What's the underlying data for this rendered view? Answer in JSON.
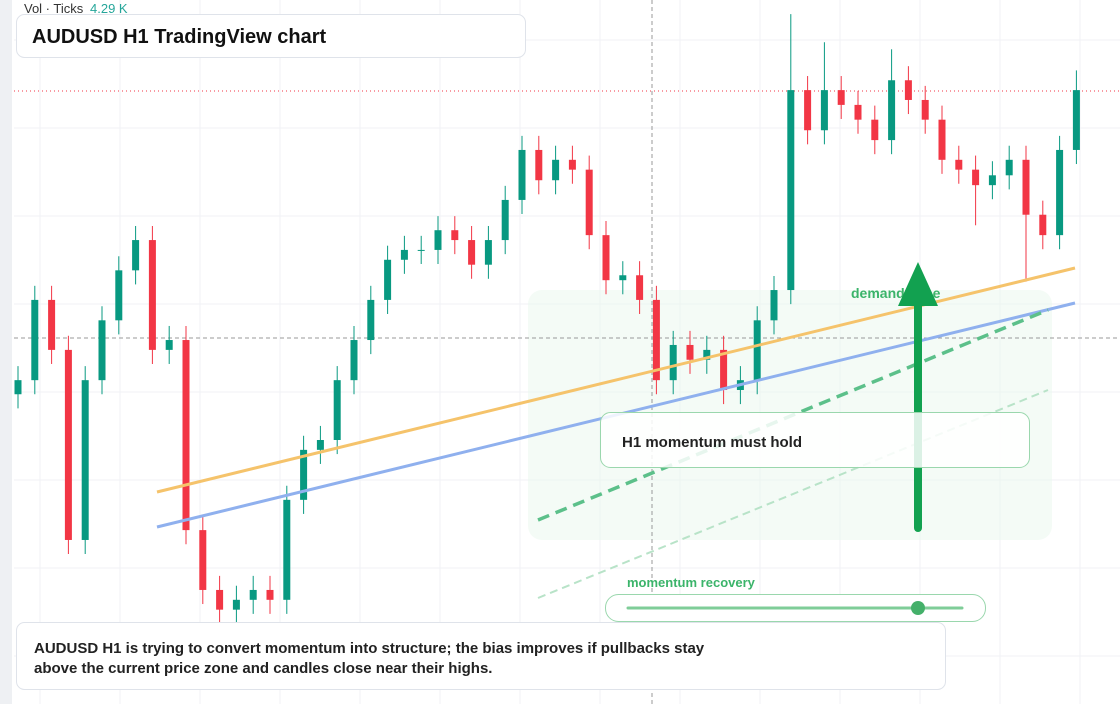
{
  "header": {
    "vol_label": "Vol · Ticks",
    "vol_value": "4.29 K",
    "title": "AUDUSD H1 TradingView chart"
  },
  "chart_data": {
    "type": "candlestick",
    "ylim": [
      0,
      100
    ],
    "up_color": "#089981",
    "down_color": "#f23645",
    "open": [
      44.0,
      46.0,
      57.4,
      50.3,
      23.3,
      46.0,
      54.5,
      61.6,
      65.9,
      50.3,
      51.7,
      24.7,
      16.2,
      13.4,
      14.8,
      16.2,
      14.8,
      29.0,
      36.1,
      37.5,
      46.0,
      51.7,
      57.4,
      63.1,
      64.5,
      64.5,
      67.3,
      65.9,
      62.4,
      65.9,
      71.6,
      78.7,
      74.4,
      77.3,
      75.9,
      66.6,
      60.2,
      60.9,
      57.4,
      46.0,
      51.0,
      48.9,
      50.3,
      44.6,
      46.0,
      54.5,
      58.8,
      87.2,
      81.5,
      87.2,
      85.1,
      83.0,
      80.1,
      88.6,
      85.8,
      83.0,
      77.3,
      75.9,
      73.7,
      75.1,
      77.3,
      69.5,
      66.6,
      78.7
    ],
    "high": [
      48.0,
      59.4,
      59.4,
      52.3,
      48.0,
      56.5,
      63.6,
      67.9,
      67.9,
      53.7,
      53.7,
      26.7,
      18.2,
      16.8,
      18.2,
      18.2,
      31.0,
      38.1,
      39.5,
      48.0,
      53.7,
      59.4,
      65.1,
      66.5,
      66.5,
      69.3,
      69.3,
      67.9,
      67.9,
      73.6,
      80.7,
      80.7,
      79.3,
      79.3,
      77.9,
      68.6,
      62.9,
      62.9,
      59.4,
      53.0,
      53.0,
      52.3,
      52.3,
      48.0,
      56.5,
      60.8,
      98.0,
      89.2,
      94.0,
      89.2,
      87.1,
      85.0,
      93.0,
      90.6,
      87.8,
      85.0,
      79.3,
      77.9,
      77.1,
      79.3,
      79.3,
      71.5,
      80.7,
      90.0
    ],
    "low": [
      42.0,
      44.0,
      48.3,
      21.3,
      21.3,
      44.0,
      52.5,
      59.6,
      48.3,
      48.3,
      22.7,
      14.2,
      11.4,
      11.4,
      12.8,
      12.8,
      12.8,
      27.0,
      34.1,
      35.5,
      44.0,
      49.7,
      55.4,
      61.1,
      62.5,
      62.5,
      63.9,
      60.4,
      60.4,
      63.9,
      69.6,
      72.4,
      72.4,
      73.9,
      64.6,
      58.2,
      58.2,
      55.4,
      44.0,
      44.0,
      46.9,
      46.9,
      42.6,
      42.6,
      44.0,
      52.5,
      56.8,
      79.5,
      79.5,
      83.1,
      81.0,
      78.1,
      78.1,
      83.8,
      81.0,
      75.3,
      73.9,
      68.0,
      71.7,
      73.1,
      60.0,
      64.6,
      64.6,
      76.7
    ],
    "close": [
      46.0,
      57.4,
      50.3,
      23.3,
      46.0,
      54.5,
      61.6,
      65.9,
      50.3,
      51.7,
      24.7,
      16.2,
      13.4,
      14.8,
      16.2,
      14.8,
      29.0,
      36.1,
      37.5,
      46.0,
      51.7,
      57.4,
      63.1,
      64.5,
      64.5,
      67.3,
      65.9,
      62.4,
      65.9,
      71.6,
      78.7,
      74.4,
      77.3,
      75.9,
      66.6,
      60.2,
      60.9,
      57.4,
      46.0,
      51.0,
      48.9,
      50.3,
      44.6,
      46.0,
      54.5,
      58.8,
      87.2,
      81.5,
      87.2,
      85.1,
      83.0,
      80.1,
      88.6,
      85.8,
      83.0,
      77.3,
      75.9,
      73.7,
      75.1,
      77.3,
      69.5,
      66.6,
      78.7,
      87.2
    ]
  },
  "annotations": {
    "zone": "demand zone",
    "callout": "H1 momentum must hold",
    "slider_label": "momentum recovery"
  },
  "note": {
    "lines": [
      "AUDUSD H1 is trying to convert momentum into structure; the bias improves if pullbacks stay",
      "above the current price zone and candles close near their highs."
    ]
  }
}
